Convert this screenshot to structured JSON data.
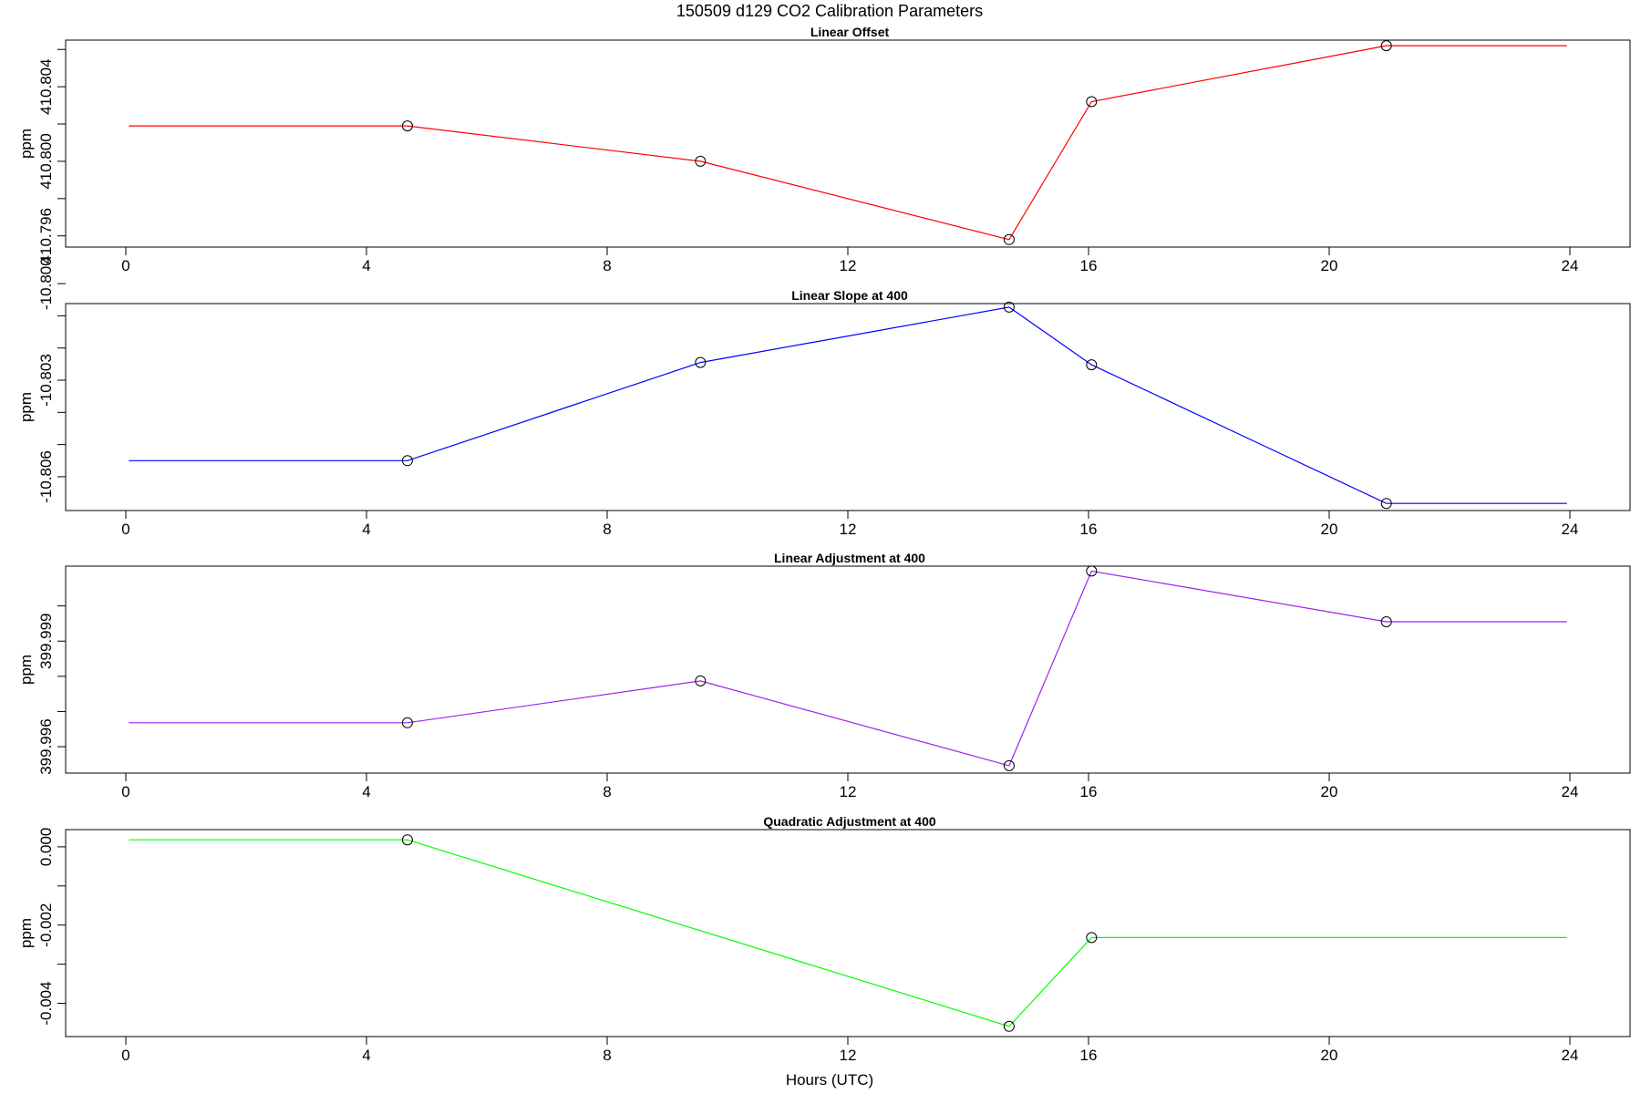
{
  "title": "150509   d129   CO2 Calibration Parameters",
  "xlabel": "Hours (UTC)",
  "colors": {
    "axis": "#000000",
    "point": "#000000"
  },
  "chart_data": [
    {
      "type": "line",
      "title": "Linear Offset",
      "ylabel": "ppm",
      "color": "#ff0000",
      "x": [
        0.05,
        4.68,
        9.55,
        14.68,
        16.05,
        20.95,
        23.95
      ],
      "values": [
        410.8019,
        410.8019,
        410.8,
        410.7958,
        410.8032,
        410.8062,
        410.8062
      ],
      "markers": [
        false,
        true,
        true,
        true,
        true,
        true,
        false
      ],
      "xlim": [
        -1.0,
        25.0
      ],
      "ylim": [
        410.7954,
        410.8065
      ],
      "xticks": [
        0,
        4,
        8,
        12,
        16,
        20,
        24
      ],
      "yticks": [
        410.796,
        410.8,
        410.804
      ],
      "ytick_labels": [
        "410.796",
        "410.800",
        "410.804"
      ],
      "minor_yticks": [
        410.798,
        410.802,
        410.806
      ]
    },
    {
      "type": "line",
      "title": "Linear Slope at 400",
      "ylabel": "ppm",
      "color": "#0000ff",
      "x": [
        0.05,
        4.68,
        9.55,
        14.68,
        16.05,
        20.95,
        23.95
      ],
      "values": [
        -10.8055,
        -10.8055,
        -10.80245,
        -10.80073,
        -10.80252,
        -10.80683,
        -10.80683
      ],
      "markers": [
        false,
        true,
        true,
        true,
        true,
        true,
        false
      ],
      "xlim": [
        -1.0,
        25.0
      ],
      "ylim": [
        -10.80705,
        -10.80062
      ],
      "xticks": [
        0,
        4,
        8,
        12,
        16,
        20,
        24
      ],
      "yticks": [
        -10.806,
        -10.803,
        -10.8
      ],
      "ytick_labels": [
        "-10.806",
        "-10.803",
        "-10.800"
      ],
      "minor_yticks": [
        -10.805,
        -10.804,
        -10.802,
        -10.801
      ]
    },
    {
      "type": "line",
      "title": "Linear Adjustment at 400",
      "ylabel": "ppm",
      "color": "#a020f0",
      "x": [
        0.05,
        4.68,
        9.55,
        14.68,
        16.05,
        20.95,
        23.95
      ],
      "values": [
        399.99668,
        399.99668,
        399.99787,
        399.99546,
        400.00099,
        399.99955,
        399.99955
      ],
      "markers": [
        false,
        true,
        true,
        true,
        true,
        true,
        false
      ],
      "xlim": [
        -1.0,
        25.0
      ],
      "ylim": [
        399.99525,
        400.00113
      ],
      "xticks": [
        0,
        4,
        8,
        12,
        16,
        20,
        24
      ],
      "yticks": [
        399.996,
        399.999
      ],
      "ytick_labels": [
        "399.996",
        "399.999"
      ],
      "minor_yticks": [
        399.997,
        399.998,
        400.0
      ]
    },
    {
      "type": "line",
      "title": "Quadratic Adjustment at 400",
      "ylabel": "ppm",
      "color": "#00ff00",
      "x": [
        0.05,
        4.68,
        14.68,
        16.05,
        23.95
      ],
      "values": [
        0.00018,
        0.00018,
        -0.00459,
        -0.00232,
        -0.00232
      ],
      "markers": [
        false,
        true,
        true,
        true,
        false
      ],
      "xlim": [
        -1.0,
        25.0
      ],
      "ylim": [
        -0.00485,
        0.00044
      ],
      "xticks": [
        0,
        4,
        8,
        12,
        16,
        20,
        24
      ],
      "yticks": [
        -0.004,
        -0.002,
        0.0
      ],
      "ytick_labels": [
        "-0.004",
        "-0.002",
        "0.000"
      ],
      "minor_yticks": [
        -0.003,
        -0.001
      ]
    }
  ]
}
